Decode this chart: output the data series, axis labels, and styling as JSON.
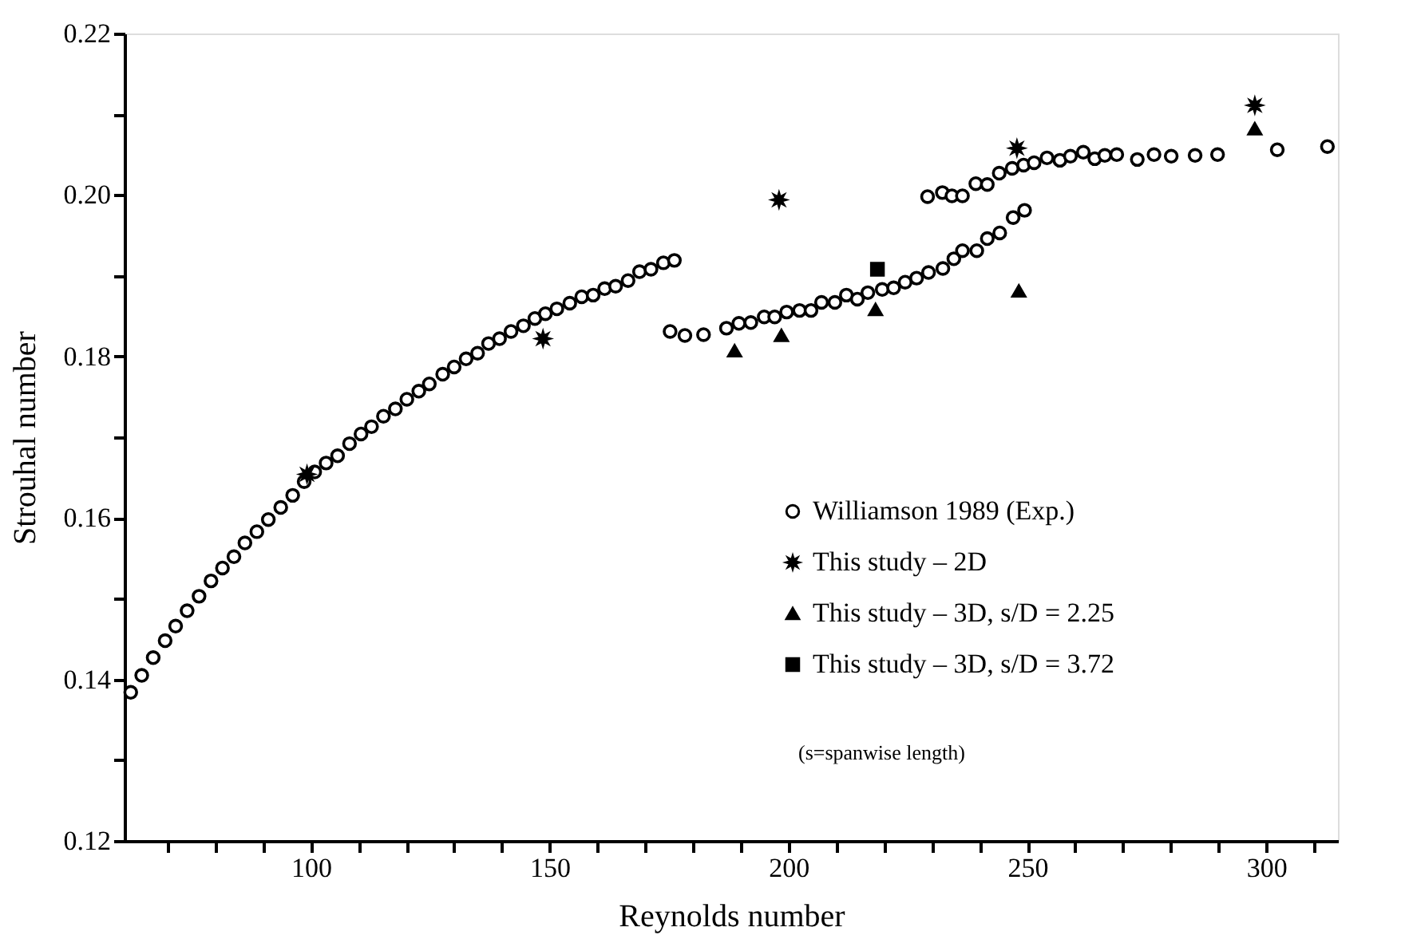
{
  "chart_data": {
    "type": "scatter",
    "xlabel": "Reynolds number",
    "ylabel": "Strouhal number",
    "xlim": [
      61,
      315
    ],
    "ylim": [
      0.12,
      0.22
    ],
    "xticks": [
      {
        "value": 70,
        "label": null
      },
      {
        "value": 80,
        "label": null
      },
      {
        "value": 90,
        "label": null
      },
      100,
      {
        "value": 110,
        "label": null
      },
      {
        "value": 120,
        "label": null
      },
      {
        "value": 130,
        "label": null
      },
      {
        "value": 140,
        "label": null
      },
      150,
      {
        "value": 160,
        "label": null
      },
      {
        "value": 170,
        "label": null
      },
      {
        "value": 180,
        "label": null
      },
      {
        "value": 190,
        "label": null
      },
      200,
      {
        "value": 210,
        "label": null
      },
      {
        "value": 220,
        "label": null
      },
      {
        "value": 230,
        "label": null
      },
      {
        "value": 240,
        "label": null
      },
      250,
      {
        "value": 260,
        "label": null
      },
      {
        "value": 270,
        "label": null
      },
      {
        "value": 280,
        "label": null
      },
      {
        "value": 290,
        "label": null
      },
      300,
      {
        "value": 310,
        "label": null
      }
    ],
    "yticks": [
      0.12,
      {
        "value": 0.13,
        "label": null
      },
      0.14,
      {
        "value": 0.15,
        "label": null
      },
      0.16,
      {
        "value": 0.17,
        "label": null
      },
      0.18,
      {
        "value": 0.19,
        "label": null
      },
      {
        "value": 0.2,
        "label": "0.20"
      },
      {
        "value": 0.21,
        "label": null
      },
      0.22
    ],
    "grid": false,
    "legend": "bottom right",
    "annotations": [
      "(s=spanwise length)"
    ],
    "series": [
      {
        "name": "Williamson 1989 (Exp.)",
        "color": "#000000",
        "marker": "circle",
        "x": [
          62.3,
          64.6,
          67.0,
          69.5,
          71.7,
          74.1,
          76.6,
          79.1,
          81.5,
          83.9,
          86.2,
          88.7,
          91.1,
          93.7,
          96.2,
          98.6,
          100.8,
          103.2,
          105.6,
          108.1,
          110.5,
          112.7,
          115.2,
          117.7,
          120.1,
          122.6,
          124.8,
          127.6,
          130.0,
          132.5,
          134.9,
          137.2,
          139.5,
          141.9,
          144.5,
          146.9,
          149.1,
          151.5,
          154.2,
          156.7,
          159.1,
          161.5,
          163.8,
          166.4,
          168.8,
          171.2,
          173.8,
          176.1,
          175.2,
          178.3,
          182.2,
          187.0,
          189.6,
          192.1,
          194.9,
          197.1,
          199.6,
          202.3,
          204.7,
          206.9,
          209.7,
          212.1,
          214.4,
          216.6,
          219.6,
          222.0,
          224.4,
          226.8,
          229.3,
          232.3,
          234.6,
          236.4,
          239.4,
          241.6,
          244.2,
          247.0,
          249.4,
          229.1,
          232.2,
          234.2,
          236.4,
          239.2,
          241.6,
          244.1,
          246.8,
          249.2,
          251.4,
          254.1,
          256.8,
          259.0,
          261.7,
          264.1,
          266.2,
          268.7,
          273.0,
          276.5,
          280.1,
          285.1,
          289.8,
          302.3,
          312.8
        ],
        "values": [
          0.1384,
          0.1405,
          0.1427,
          0.1448,
          0.1466,
          0.1485,
          0.1503,
          0.1522,
          0.1538,
          0.1552,
          0.1569,
          0.1583,
          0.1598,
          0.1613,
          0.1628,
          0.1645,
          0.1657,
          0.1668,
          0.1677,
          0.1692,
          0.1704,
          0.1713,
          0.1726,
          0.1735,
          0.1747,
          0.1757,
          0.1766,
          0.1778,
          0.1787,
          0.1797,
          0.1804,
          0.1816,
          0.1822,
          0.1831,
          0.1838,
          0.1847,
          0.1853,
          0.1859,
          0.1866,
          0.1874,
          0.1876,
          0.1884,
          0.1887,
          0.1894,
          0.1905,
          0.1908,
          0.1916,
          0.1919,
          0.1831,
          0.1826,
          0.1827,
          0.1835,
          0.1841,
          0.1842,
          0.1849,
          0.1849,
          0.1855,
          0.1857,
          0.1857,
          0.1867,
          0.1867,
          0.1876,
          0.1871,
          0.1879,
          0.1883,
          0.1885,
          0.1892,
          0.1897,
          0.1904,
          0.1909,
          0.1921,
          0.1931,
          0.1931,
          0.1946,
          0.1953,
          0.1972,
          0.1981,
          0.1998,
          0.2003,
          0.1999,
          0.1999,
          0.2014,
          0.2013,
          0.2027,
          0.2033,
          0.2037,
          0.204,
          0.2046,
          0.2043,
          0.2048,
          0.2053,
          0.2045,
          0.2049,
          0.205,
          0.2044,
          0.205,
          0.2048,
          0.2049,
          0.205,
          0.2056,
          0.206
        ]
      },
      {
        "name": "This study – 2D",
        "color": "#000000",
        "marker": "star",
        "x": [
          99.2,
          148.6,
          198.0,
          247.8,
          297.6
        ],
        "values": [
          0.1654,
          0.1822,
          0.1994,
          0.2058,
          0.2111
        ]
      },
      {
        "name": "This study – 3D, s/D = 2.25",
        "color": "#000000",
        "marker": "triangle",
        "x": [
          188.7,
          198.5,
          218.2,
          248.2,
          297.6
        ],
        "values": [
          0.1807,
          0.1826,
          0.1858,
          0.1881,
          0.2082
        ]
      },
      {
        "name": "This study – 3D, s/D = 3.72",
        "color": "#000000",
        "marker": "square",
        "x": [
          218.6
        ],
        "values": [
          0.1908
        ]
      }
    ]
  }
}
